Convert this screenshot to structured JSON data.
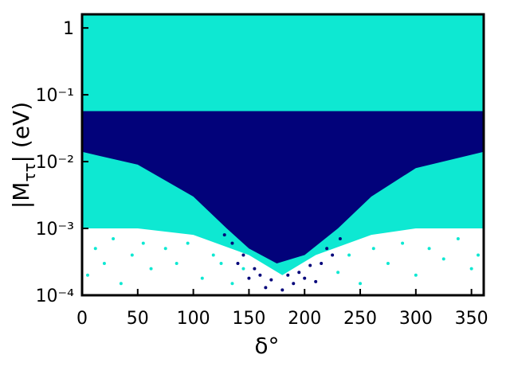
{
  "chart_data": {
    "type": "scatter",
    "xlabel": "δ°",
    "ylabel": [
      "|M",
      "ττ",
      "| (eV)"
    ],
    "xlim": [
      0,
      361
    ],
    "ylim": [
      0.0001,
      1.6
    ],
    "log_y": true,
    "xticks": [
      0,
      50,
      100,
      150,
      200,
      250,
      300,
      350
    ],
    "yticks": [
      {
        "value": 0.0001,
        "label": "10⁻⁴"
      },
      {
        "value": 0.001,
        "label": "10⁻³"
      },
      {
        "value": 0.01,
        "label": "10⁻²"
      },
      {
        "value": 0.1,
        "label": "10⁻¹"
      },
      1
    ],
    "series": [
      {
        "color": "#0ee8d2",
        "x": [
          0,
          50,
          100,
          150,
          180,
          210,
          260,
          300,
          361
        ],
        "lower": [
          0.001,
          0.001,
          0.0008,
          0.0004,
          0.0002,
          0.0004,
          0.0008,
          0.001,
          0.001
        ],
        "upper": [
          1.6,
          1.6,
          1.6,
          1.6,
          1.6,
          1.6,
          1.6,
          1.6,
          1.6
        ]
      },
      {
        "color": "#0ee8d2",
        "x": [
          5,
          12,
          20,
          28,
          35,
          45,
          55,
          62,
          75,
          85,
          95,
          108,
          118,
          125,
          135,
          145,
          230,
          240,
          250,
          262,
          275,
          288,
          300,
          312,
          325,
          338,
          350,
          356
        ],
        "y": [
          0.0002,
          0.0005,
          0.0003,
          0.0007,
          0.00015,
          0.0004,
          0.0006,
          0.00025,
          0.0005,
          0.0003,
          0.0006,
          0.00018,
          0.0004,
          0.0003,
          0.00015,
          0.00025,
          0.00022,
          0.0004,
          0.00015,
          0.0005,
          0.0003,
          0.0006,
          0.0002,
          0.0005,
          0.00035,
          0.0007,
          0.00025,
          0.0004
        ]
      },
      {
        "color": "#02027a",
        "x": [
          0,
          50,
          100,
          130,
          150,
          175,
          200,
          230,
          260,
          300,
          361
        ],
        "lower": [
          0.014,
          0.009,
          0.003,
          0.001,
          0.0005,
          0.0003,
          0.0004,
          0.001,
          0.003,
          0.008,
          0.014
        ],
        "upper": [
          0.057,
          0.057,
          0.057,
          0.057,
          0.057,
          0.057,
          0.057,
          0.057,
          0.057,
          0.057,
          0.057
        ]
      },
      {
        "color": "#02027a",
        "x": [
          128,
          135,
          140,
          145,
          150,
          155,
          160,
          165,
          170,
          180,
          185,
          190,
          195,
          200,
          205,
          210,
          215,
          220,
          225,
          232
        ],
        "y": [
          0.0008,
          0.0006,
          0.0003,
          0.0004,
          0.00018,
          0.00025,
          0.0002,
          0.00013,
          0.00017,
          0.00012,
          0.0002,
          0.00015,
          0.00022,
          0.00018,
          0.00028,
          0.00016,
          0.0003,
          0.0005,
          0.0004,
          0.0007
        ]
      }
    ]
  }
}
